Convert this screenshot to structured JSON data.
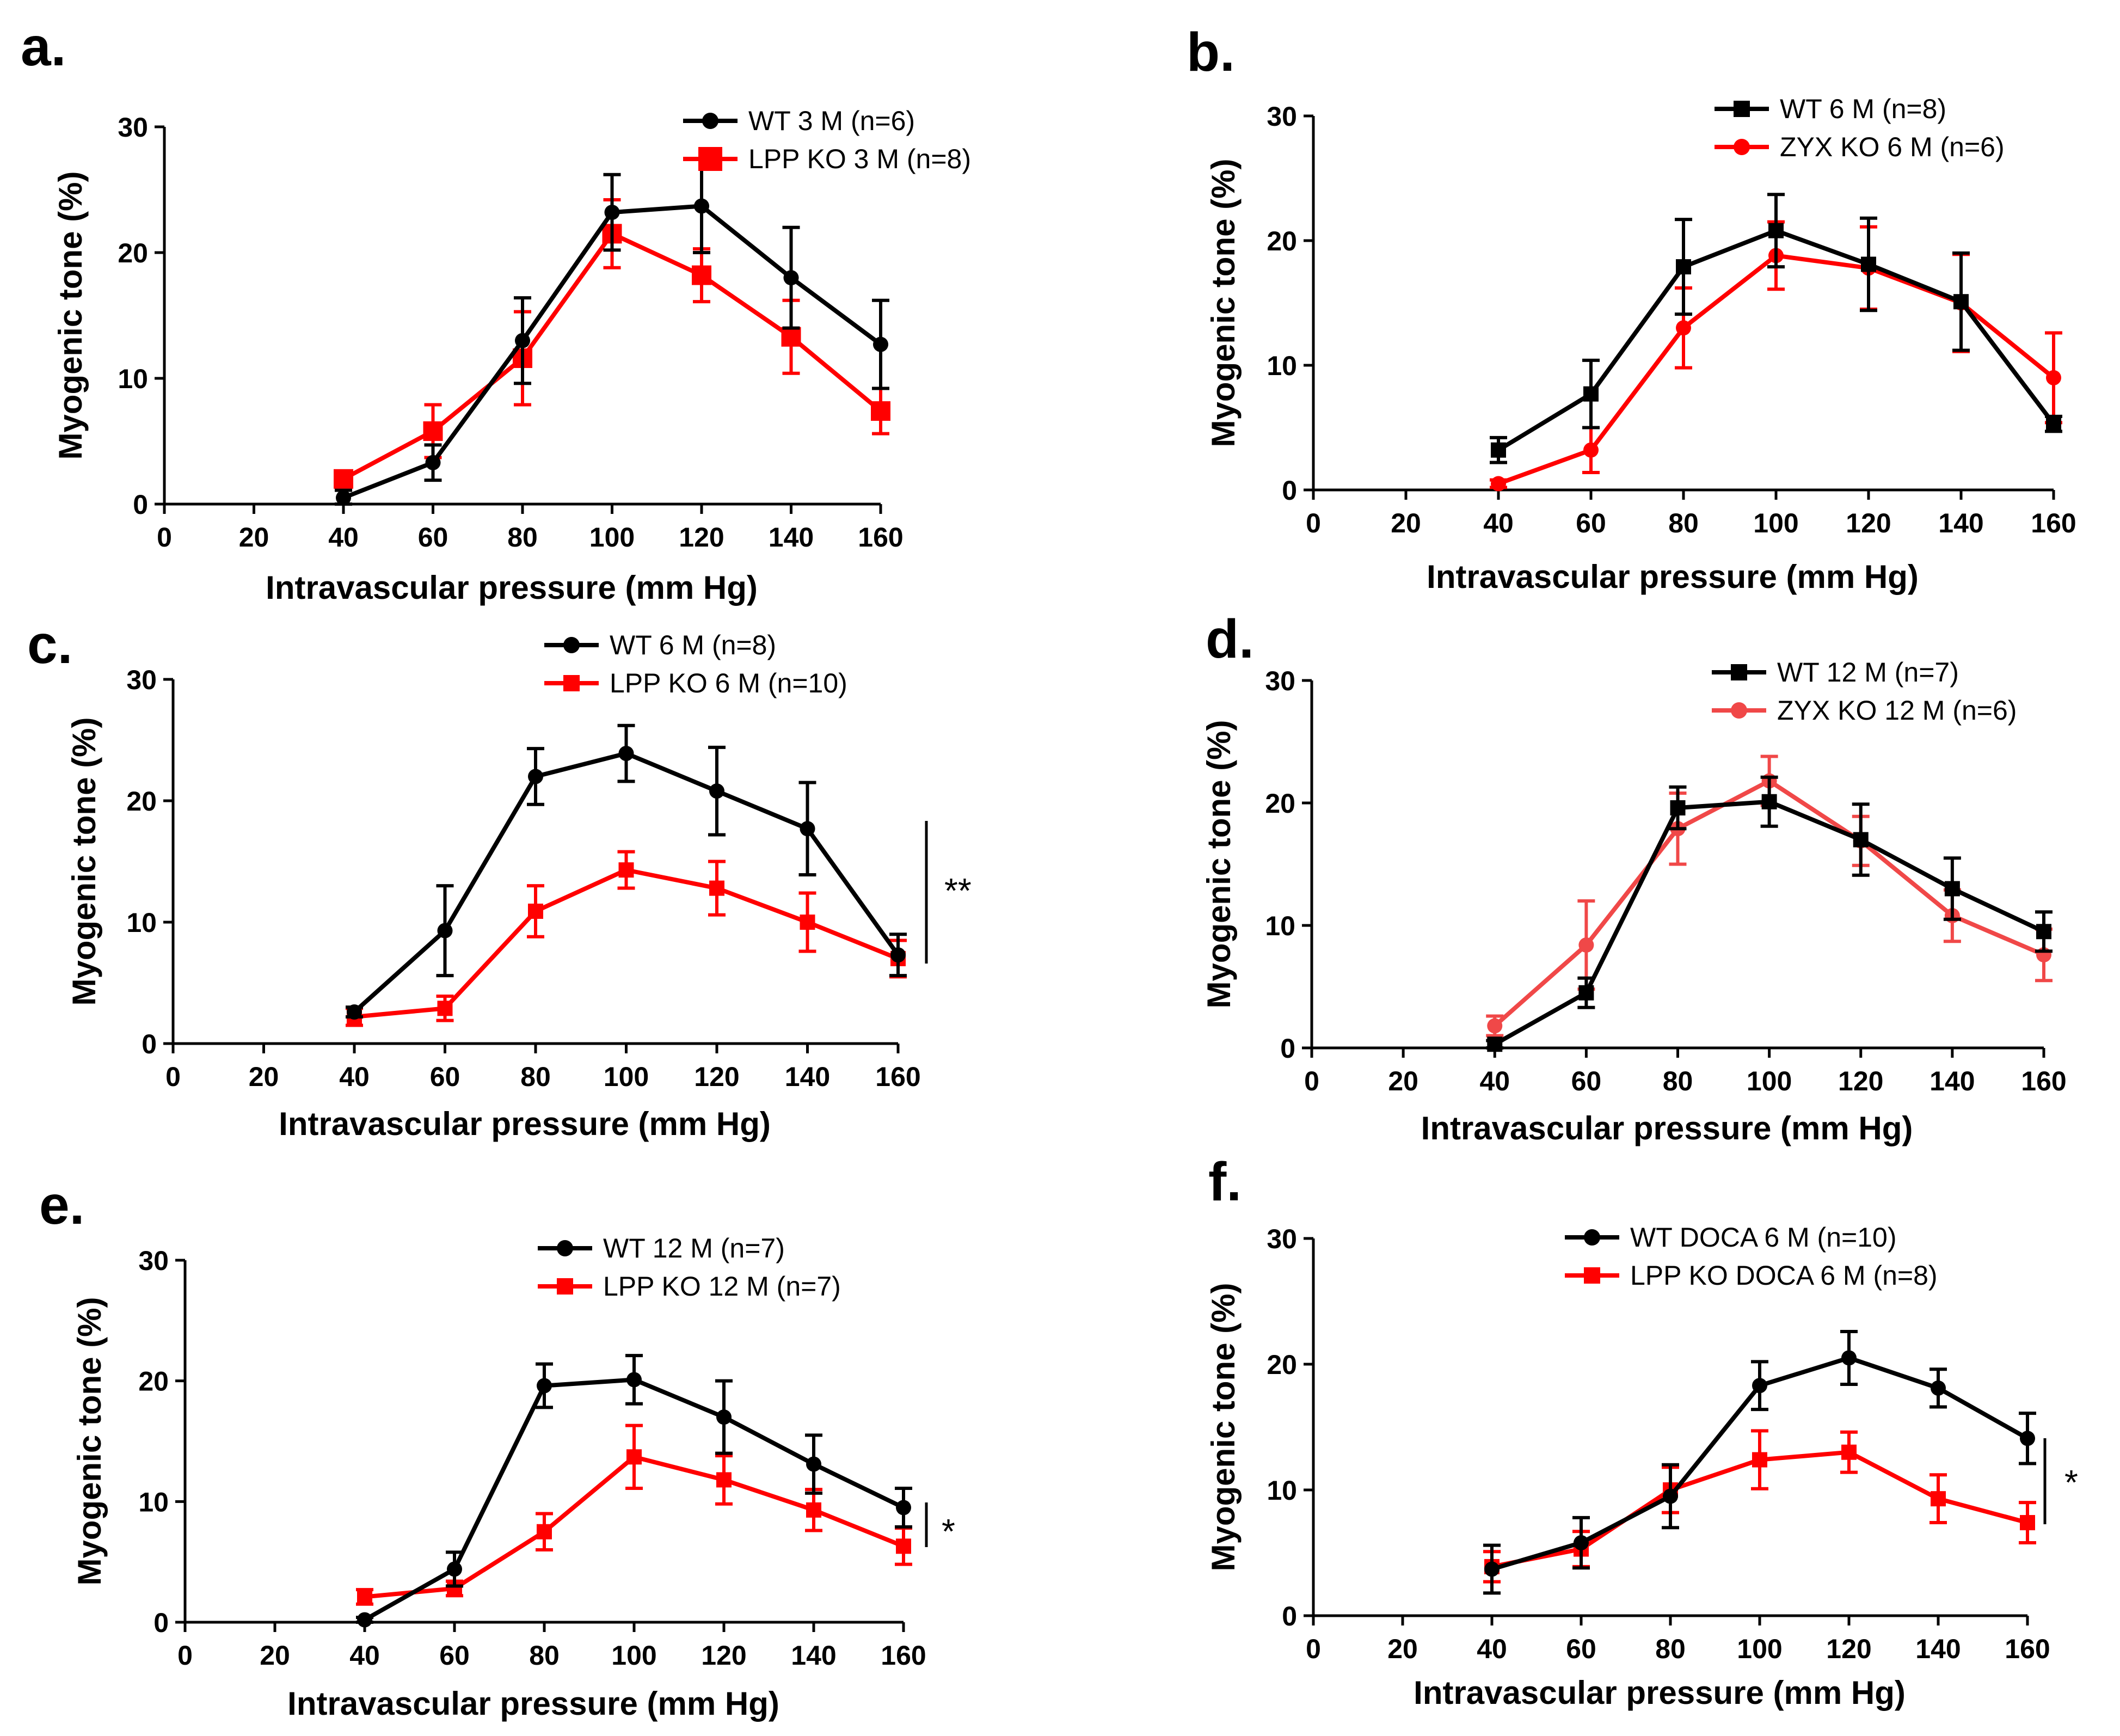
{
  "colors": {
    "wt": "#000000",
    "ko": "#ff0000",
    "ko_light": "#f04848"
  },
  "chart_data": [
    {
      "id": "a",
      "panel_label": "a.",
      "type": "line",
      "xlabel": "Intravascular  pressure (mm Hg)",
      "ylabel": "Myogenic tone (%)",
      "xlim": [
        0,
        160
      ],
      "ylim": [
        0,
        30
      ],
      "xticks": [
        "0",
        "20",
        "40",
        "60",
        "80",
        "100",
        "120",
        "140",
        "160"
      ],
      "yticks": [
        "0",
        "10",
        "20",
        "30"
      ],
      "legend_position": "top-right",
      "significance": "",
      "series": [
        {
          "name": "WT 3 M (n=6)",
          "color": "#000000",
          "marker": "circle",
          "x": [
            40,
            60,
            80,
            100,
            120,
            140,
            160
          ],
          "y": [
            0.5,
            3.3,
            13.0,
            23.2,
            23.7,
            18.0,
            12.7
          ],
          "err": [
            0.6,
            1.4,
            3.4,
            3.0,
            3.7,
            4.0,
            3.5
          ]
        },
        {
          "name": "LPP KO 3 M (n=8)",
          "color": "#ff0000",
          "marker": "square",
          "x": [
            40,
            60,
            80,
            100,
            120,
            140,
            160
          ],
          "y": [
            2.0,
            5.8,
            11.6,
            21.5,
            18.2,
            13.3,
            7.4
          ],
          "err": [
            0.5,
            2.1,
            3.7,
            2.7,
            2.1,
            2.9,
            1.8
          ]
        }
      ]
    },
    {
      "id": "b",
      "panel_label": "b.",
      "type": "line",
      "xlabel": "Intravascular pressure (mm Hg)",
      "ylabel": "Myogenic tone (%)",
      "xlim": [
        0,
        160
      ],
      "ylim": [
        0,
        30
      ],
      "xticks": [
        "0",
        "20",
        "40",
        "60",
        "80",
        "100",
        "120",
        "140",
        "160"
      ],
      "yticks": [
        "0",
        "10",
        "20",
        "30"
      ],
      "legend_position": "top-right",
      "significance": "",
      "series": [
        {
          "name": "WT 6 M (n=8)",
          "color": "#000000",
          "marker": "square",
          "x": [
            40,
            60,
            80,
            100,
            120,
            140,
            160
          ],
          "y": [
            3.2,
            7.7,
            17.9,
            20.8,
            18.1,
            15.1,
            5.3
          ],
          "err": [
            1.0,
            2.7,
            3.8,
            2.9,
            3.7,
            3.9,
            0.6
          ]
        },
        {
          "name": "ZYX KO 6 M (n=6)",
          "color": "#ff0000",
          "marker": "circle",
          "x": [
            40,
            60,
            80,
            100,
            120,
            140,
            160
          ],
          "y": [
            0.5,
            3.2,
            13.0,
            18.8,
            17.8,
            15.0,
            9.0
          ],
          "err": [
            0.3,
            1.8,
            3.2,
            2.7,
            3.3,
            3.9,
            3.6
          ]
        }
      ]
    },
    {
      "id": "c",
      "panel_label": "c.",
      "type": "line",
      "xlabel": "Intravascular  pressure (mm Hg)",
      "ylabel": "Myogenic tone (%)",
      "xlim": [
        0,
        160
      ],
      "ylim": [
        0,
        30
      ],
      "xticks": [
        "0",
        "20",
        "40",
        "60",
        "80",
        "100",
        "120",
        "140",
        "160"
      ],
      "yticks": [
        "0",
        "10",
        "20",
        "30"
      ],
      "legend_position": "top-right",
      "significance": "**",
      "series": [
        {
          "name": "WT  6 M (n=8)",
          "color": "#000000",
          "marker": "circle",
          "x": [
            40,
            60,
            80,
            100,
            120,
            140,
            160
          ],
          "y": [
            2.6,
            9.3,
            22.0,
            23.9,
            20.8,
            17.7,
            7.3
          ],
          "err": [
            0.4,
            3.7,
            2.3,
            2.3,
            3.6,
            3.8,
            1.7
          ]
        },
        {
          "name": "LPP KO 6 M (n=10)",
          "color": "#ff0000",
          "marker": "square",
          "x": [
            40,
            60,
            80,
            100,
            120,
            140,
            160
          ],
          "y": [
            2.2,
            2.9,
            10.9,
            14.3,
            12.8,
            10.0,
            7.0
          ],
          "err": [
            0.7,
            1.0,
            2.1,
            1.5,
            2.2,
            2.4,
            1.5
          ]
        }
      ]
    },
    {
      "id": "d",
      "panel_label": "d.",
      "type": "line",
      "xlabel": "Intravascular pressure (mm Hg)",
      "ylabel": "Myogenic tone (%)",
      "xlim": [
        0,
        160
      ],
      "ylim": [
        0,
        30
      ],
      "xticks": [
        "0",
        "20",
        "40",
        "60",
        "80",
        "100",
        "120",
        "140",
        "160"
      ],
      "yticks": [
        "0",
        "10",
        "20",
        "30"
      ],
      "legend_position": "top-right",
      "significance": "",
      "series": [
        {
          "name": "WT 12 M (n=7)",
          "color": "#000000",
          "marker": "square",
          "x": [
            40,
            60,
            80,
            100,
            120,
            140,
            160
          ],
          "y": [
            0.3,
            4.5,
            19.6,
            20.1,
            17.0,
            13.0,
            9.5
          ],
          "err": [
            0.3,
            1.2,
            1.7,
            2.0,
            2.9,
            2.5,
            1.6
          ]
        },
        {
          "name": "ZYX KO 12 M (n=6)",
          "color": "#f04848",
          "marker": "circle",
          "x": [
            40,
            60,
            80,
            100,
            120,
            140,
            160
          ],
          "y": [
            1.8,
            8.4,
            17.9,
            21.8,
            16.9,
            10.8,
            7.6
          ],
          "err": [
            0.8,
            3.6,
            2.9,
            2.0,
            2.0,
            2.1,
            2.1
          ]
        }
      ]
    },
    {
      "id": "e",
      "panel_label": "e.",
      "type": "line",
      "xlabel": "Intravascular pressure (mm Hg)",
      "ylabel": "Myogenic tone (%)",
      "xlim": [
        0,
        160
      ],
      "ylim": [
        0,
        30
      ],
      "xticks": [
        "0",
        "20",
        "40",
        "60",
        "80",
        "100",
        "120",
        "140",
        "160"
      ],
      "yticks": [
        "0",
        "10",
        "20",
        "30"
      ],
      "legend_position": "top-right",
      "significance": "*",
      "series": [
        {
          "name": "WT 12 M (n=7)",
          "color": "#000000",
          "marker": "circle",
          "x": [
            40,
            60,
            80,
            100,
            120,
            140,
            160
          ],
          "y": [
            0.2,
            4.4,
            19.6,
            20.1,
            17.0,
            13.1,
            9.5
          ],
          "err": [
            0.2,
            1.4,
            1.8,
            2.0,
            3.0,
            2.4,
            1.6
          ]
        },
        {
          "name": "LPP KO 12 M (n=7)",
          "color": "#ff0000",
          "marker": "square",
          "x": [
            40,
            60,
            80,
            100,
            120,
            140,
            160
          ],
          "y": [
            2.1,
            2.8,
            7.5,
            13.7,
            11.8,
            9.3,
            6.3
          ],
          "err": [
            0.6,
            0.6,
            1.5,
            2.6,
            2.0,
            1.7,
            1.5
          ]
        }
      ]
    },
    {
      "id": "f",
      "panel_label": "f.",
      "type": "line",
      "xlabel": "Intravascular pressure (mm Hg)",
      "ylabel": "Myogenic tone (%)",
      "xlim": [
        0,
        160
      ],
      "ylim": [
        0,
        30
      ],
      "xticks": [
        "0",
        "20",
        "40",
        "60",
        "80",
        "100",
        "120",
        "140",
        "160"
      ],
      "yticks": [
        "0",
        "10",
        "20",
        "30"
      ],
      "legend_position": "top-right",
      "significance": "*",
      "series": [
        {
          "name": "WT DOCA 6 M (n=10)",
          "color": "#000000",
          "marker": "circle",
          "x": [
            40,
            60,
            80,
            100,
            120,
            140,
            160
          ],
          "y": [
            3.7,
            5.8,
            9.5,
            18.3,
            20.5,
            18.1,
            14.1
          ],
          "err": [
            1.9,
            2.0,
            2.5,
            1.9,
            2.1,
            1.5,
            2.0
          ]
        },
        {
          "name": "LPP KO DOCA 6 M (n=8)",
          "color": "#ff0000",
          "marker": "square",
          "x": [
            40,
            60,
            80,
            100,
            120,
            140,
            160
          ],
          "y": [
            3.9,
            5.3,
            10.0,
            12.4,
            13.0,
            9.3,
            7.4
          ],
          "err": [
            1.2,
            1.4,
            1.8,
            2.3,
            1.6,
            1.9,
            1.6
          ]
        }
      ]
    }
  ]
}
